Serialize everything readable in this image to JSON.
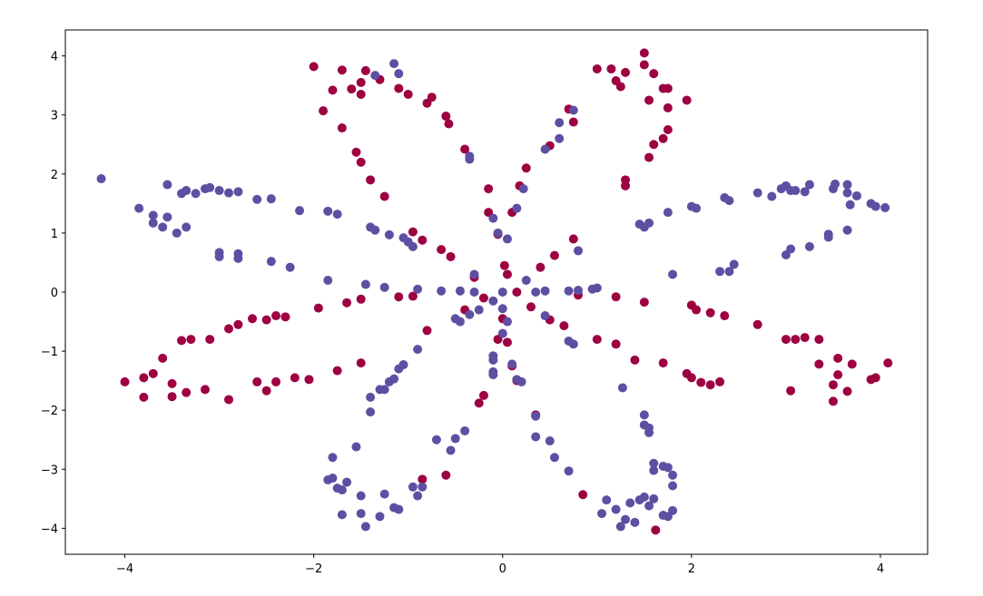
{
  "chart_data": {
    "type": "scatter",
    "xlim": [
      -4.63,
      4.5
    ],
    "ylim": [
      -4.44,
      4.44
    ],
    "xticks": [
      {
        "value": -4,
        "label": "−4"
      },
      {
        "value": -2,
        "label": "−2"
      },
      0,
      2,
      4
    ],
    "yticks": [
      {
        "value": -4,
        "label": "−4"
      },
      {
        "value": -3,
        "label": "−3"
      },
      {
        "value": -2,
        "label": "−2"
      },
      {
        "value": -1,
        "label": "−1"
      },
      0,
      1,
      2,
      3,
      4
    ],
    "series": [
      {
        "color": "#9e0142",
        "x": [
          -2.0,
          -1.7,
          -1.8,
          -1.6,
          -1.5,
          -1.45,
          -1.3,
          -1.5,
          -1.1,
          -1.0,
          -0.8,
          -0.75,
          -1.9,
          -1.7,
          -1.55,
          -1.5,
          -1.4,
          -1.25,
          -0.6,
          -0.57,
          -0.4,
          -0.15,
          -0.15,
          -0.05,
          0.02,
          -0.95,
          -0.85,
          -0.65,
          -0.55,
          -0.3,
          1.5,
          1.5,
          1.0,
          1.15,
          1.3,
          1.6,
          1.7,
          1.75,
          1.95,
          1.25,
          1.2,
          1.55,
          1.75,
          0.7,
          0.75,
          1.75,
          1.6,
          1.55,
          1.7,
          1.3,
          1.3,
          0.5,
          0.25,
          0.18,
          0.1,
          0.75,
          0.55,
          0.4,
          0.05,
          -4.0,
          -3.8,
          -3.7,
          -3.8,
          -3.6,
          -3.5,
          -3.5,
          -3.35,
          -3.4,
          -3.3,
          -3.1,
          -3.15,
          -2.9,
          -2.9,
          -2.8,
          -2.65,
          -2.5,
          -2.4,
          -2.3,
          -2.6,
          -2.5,
          -2.4,
          -2.2,
          -2.05,
          -1.95,
          -1.75,
          -1.65,
          -1.5,
          -1.5,
          -1.1,
          -0.95,
          -0.8,
          -0.4,
          -0.2,
          2.0,
          2.05,
          2.2,
          2.35,
          2.7,
          3.0,
          3.1,
          3.2,
          3.35,
          3.35,
          3.55,
          3.55,
          3.7,
          3.5,
          3.5,
          3.65,
          3.9,
          4.08,
          3.95,
          3.05,
          2.3,
          2.2,
          2.1,
          1.95,
          2.0,
          1.7,
          1.4,
          1.2,
          1.0,
          0.8,
          1.2,
          1.5,
          0.65,
          0.5,
          0.3,
          0.15,
          -0.2,
          -0.25,
          -0.6,
          -0.85,
          0.35,
          0.85,
          1.62,
          0.0,
          -0.05,
          0.05,
          0.1,
          0.15
        ],
        "values": [
          3.82,
          3.76,
          3.42,
          3.44,
          3.55,
          3.75,
          3.6,
          3.35,
          3.45,
          3.35,
          3.2,
          3.3,
          3.07,
          2.78,
          2.37,
          2.2,
          1.9,
          1.62,
          2.98,
          2.85,
          2.42,
          1.75,
          1.35,
          0.98,
          0.45,
          1.02,
          0.88,
          0.72,
          0.6,
          0.25,
          4.05,
          3.85,
          3.78,
          3.78,
          3.72,
          3.7,
          3.45,
          3.45,
          3.25,
          3.48,
          3.58,
          3.25,
          3.12,
          3.1,
          2.88,
          2.75,
          2.5,
          2.28,
          2.6,
          1.9,
          1.8,
          2.48,
          2.1,
          1.8,
          1.35,
          0.9,
          0.62,
          0.42,
          0.3,
          -1.52,
          -1.45,
          -1.38,
          -1.78,
          -1.12,
          -1.55,
          -1.77,
          -1.7,
          -0.82,
          -0.8,
          -0.8,
          -1.65,
          -0.62,
          -1.82,
          -0.55,
          -0.45,
          -0.47,
          -0.4,
          -0.42,
          -1.52,
          -1.67,
          -1.52,
          -1.45,
          -1.48,
          -0.27,
          -1.33,
          -0.18,
          -0.12,
          -1.2,
          -0.08,
          -0.07,
          -0.65,
          -0.3,
          -0.1,
          -0.22,
          -0.3,
          -0.35,
          -0.4,
          -0.55,
          -0.8,
          -0.8,
          -0.77,
          -0.8,
          -1.22,
          -1.12,
          -1.4,
          -1.22,
          -1.57,
          -1.85,
          -1.68,
          -1.48,
          -1.2,
          -1.45,
          -1.67,
          -1.52,
          -1.57,
          -1.53,
          -1.38,
          -1.45,
          -1.2,
          -1.15,
          -0.88,
          -0.8,
          -0.05,
          -0.08,
          -0.17,
          -0.57,
          -0.47,
          -0.25,
          0.0,
          -1.75,
          -1.88,
          -3.1,
          -3.17,
          -2.08,
          -3.43,
          -4.03,
          -0.45,
          -0.8,
          -0.85,
          -1.25,
          -1.5
        ]
      },
      {
        "color": "#5e4fa2",
        "x": [
          -4.25,
          -3.85,
          -3.7,
          -3.7,
          -3.55,
          -3.6,
          -3.45,
          -3.35,
          -3.55,
          -3.4,
          -3.35,
          -3.25,
          -3.15,
          -3.1,
          -3.0,
          -2.9,
          -2.8,
          -2.6,
          -2.45,
          -3.0,
          -3.0,
          -2.8,
          -2.8,
          -2.45,
          -2.25,
          -2.15,
          -1.85,
          -1.75,
          -1.4,
          -1.35,
          -1.2,
          -1.05,
          -1.0,
          -0.95,
          -1.85,
          -1.45,
          -1.25,
          -0.9,
          -0.65,
          -0.45,
          -0.3,
          -0.9,
          -1.05,
          -1.1,
          -1.15,
          -1.2,
          -1.3,
          -1.25,
          -1.4,
          -1.4,
          -1.55,
          -1.8,
          -1.8,
          -1.85,
          -1.75,
          -1.7,
          -1.65,
          -1.5,
          -1.7,
          -1.5,
          -1.45,
          -1.3,
          -1.25,
          -1.15,
          -1.1,
          -0.95,
          -0.9,
          -0.85,
          -0.7,
          -0.55,
          -0.5,
          -0.4,
          -0.45,
          -0.35,
          -0.25,
          -0.1,
          0.0,
          0.05,
          0.0,
          -0.1,
          -0.1,
          -0.1,
          -0.1,
          0.1,
          0.15,
          0.2,
          0.35,
          0.35,
          0.5,
          0.55,
          0.7,
          1.05,
          1.1,
          1.2,
          1.25,
          1.3,
          1.35,
          1.4,
          1.45,
          1.5,
          1.55,
          1.6,
          1.7,
          1.75,
          1.8,
          1.8,
          1.8,
          1.75,
          1.7,
          1.6,
          1.6,
          1.55,
          1.55,
          1.5,
          1.5,
          1.27,
          0.7,
          0.75,
          0.35,
          0.45,
          0.7,
          0.8,
          0.95,
          1.0,
          0.45,
          1.8,
          2.3,
          2.4,
          2.45,
          3.0,
          3.05,
          3.25,
          3.45,
          3.45,
          3.65,
          1.45,
          1.5,
          1.55,
          1.75,
          2.0,
          2.05,
          2.35,
          2.4,
          2.7,
          2.85,
          2.95,
          3.0,
          3.05,
          3.1,
          3.2,
          3.25,
          3.5,
          3.52,
          3.65,
          3.65,
          3.68,
          3.75,
          3.9,
          3.95,
          4.05,
          0.8,
          0.6,
          0.6,
          0.75,
          0.45,
          0.22,
          0.15,
          0.25,
          -0.35,
          -0.35,
          -0.1,
          -0.05,
          0.05,
          -1.15,
          -1.1,
          -1.35,
          -0.3,
          0.0,
          -0.5
        ],
        "values": [
          1.92,
          1.42,
          1.3,
          1.17,
          1.27,
          1.1,
          1.0,
          1.1,
          1.82,
          1.67,
          1.72,
          1.67,
          1.75,
          1.77,
          1.72,
          1.68,
          1.7,
          1.57,
          1.58,
          0.67,
          0.6,
          0.65,
          0.57,
          0.52,
          0.42,
          1.38,
          1.37,
          1.32,
          1.1,
          1.05,
          0.97,
          0.92,
          0.85,
          0.77,
          0.2,
          0.13,
          0.08,
          0.05,
          0.02,
          0.02,
          0.0,
          -0.97,
          -1.23,
          -1.3,
          -1.47,
          -1.52,
          -1.65,
          -1.65,
          -1.78,
          -2.03,
          -2.62,
          -2.8,
          -3.15,
          -3.18,
          -3.32,
          -3.35,
          -3.22,
          -3.45,
          -3.77,
          -3.75,
          -3.97,
          -3.8,
          -3.42,
          -3.65,
          -3.68,
          -3.3,
          -3.45,
          -3.3,
          -2.5,
          -2.68,
          -2.48,
          -2.35,
          -0.5,
          -0.38,
          -0.3,
          -0.15,
          -0.28,
          -0.5,
          -0.7,
          -1.08,
          -1.15,
          -1.35,
          -1.4,
          -1.22,
          -1.48,
          -1.52,
          -2.1,
          -2.45,
          -2.52,
          -2.8,
          -3.03,
          -3.75,
          -3.52,
          -3.68,
          -3.97,
          -3.85,
          -3.57,
          -3.9,
          -3.52,
          -3.47,
          -3.62,
          -3.5,
          -3.78,
          -3.8,
          -3.7,
          -3.28,
          -3.1,
          -2.97,
          -2.95,
          -2.9,
          -3.02,
          -2.3,
          -2.38,
          -2.25,
          -2.08,
          -1.62,
          -0.83,
          -0.88,
          0.0,
          0.02,
          0.02,
          0.03,
          0.05,
          0.07,
          -0.4,
          0.3,
          0.35,
          0.35,
          0.47,
          0.63,
          0.73,
          0.77,
          0.93,
          0.98,
          1.05,
          1.15,
          1.1,
          1.17,
          1.35,
          1.45,
          1.42,
          1.6,
          1.55,
          1.68,
          1.62,
          1.75,
          1.8,
          1.72,
          1.72,
          1.7,
          1.82,
          1.75,
          1.83,
          1.68,
          1.82,
          1.48,
          1.63,
          1.5,
          1.45,
          1.43,
          0.7,
          2.6,
          2.87,
          3.08,
          2.42,
          1.75,
          1.42,
          0.2,
          2.3,
          2.25,
          1.25,
          1.0,
          0.9,
          3.87,
          3.7,
          3.67,
          0.3,
          0.0,
          -0.45
        ]
      }
    ]
  }
}
